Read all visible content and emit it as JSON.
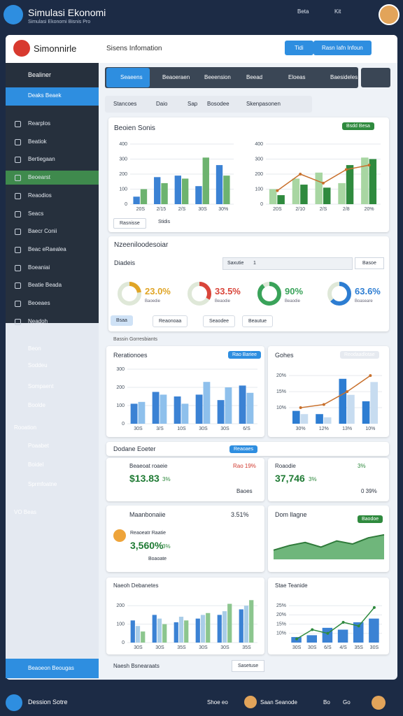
{
  "topbar": {
    "title": "Simulasi Ekonomi",
    "subtitle": "Simulasi Ekonomi Bisnis Pro",
    "links": [
      "Beta",
      "Kit"
    ]
  },
  "header": {
    "brand": "Simonnirle",
    "section": "Sisens Infomation",
    "buttons": [
      "Tidi",
      "Rasn Iafn Infoun"
    ]
  },
  "sidebar": {
    "title": "Bealiner",
    "active": "Deaks Beaek",
    "items": [
      "Rearplos",
      "Beatiok",
      "Bertiegaan",
      "Beoearst",
      "Reaodios",
      "Seacs",
      "Baecr Conii",
      "Beac eRaealea",
      "Boeaniai",
      "Beatie Beada",
      "Beoeaes",
      "Neadoh"
    ],
    "selected": 3,
    "lower": [
      "Beon",
      "Soddeu",
      "Sompaent",
      "Boolde",
      "Rooation",
      "Poaabet",
      "Boidel",
      "Sprmfoatne",
      "VO Beas"
    ],
    "footer": "Beaoeon Beougas"
  },
  "tabs": [
    "Seaeens",
    "Beaoeraen",
    "Beeension",
    "Beead",
    "Eloeas",
    "Baesideles"
  ],
  "filters": [
    "Stancoes",
    "Daio",
    "Sap",
    "Bosodee",
    "Skenpasonen"
  ],
  "panel1": {
    "title": "Beoien Sonis",
    "badge": "Bsdd Besa",
    "legend": [
      "Rasnisse",
      "Stidis"
    ],
    "charts": [
      {
        "type": "bar",
        "categories": [
          "20S",
          "2/15",
          "2/S",
          "30S",
          "30%"
        ],
        "ylim": [
          0,
          400
        ],
        "yticks": [
          0,
          100,
          200,
          300,
          400
        ],
        "series": [
          {
            "color": "#3b82d4",
            "values": [
              50,
              180,
              190,
              120,
              260
            ]
          },
          {
            "color": "#6db36f",
            "values": [
              100,
              140,
              170,
              310,
              190
            ]
          }
        ]
      },
      {
        "type": "bar",
        "categories": [
          "20S",
          "2/10",
          "2/S",
          "2/8",
          "20%"
        ],
        "ylim": [
          0,
          400
        ],
        "yticks": [
          0,
          100,
          200,
          300,
          400
        ],
        "series": [
          {
            "color": "#a8d6a2",
            "values": [
              100,
              170,
              210,
              140,
              310
            ]
          },
          {
            "color": "#2f8a3e",
            "values": [
              60,
              130,
              110,
              260,
              300
            ]
          },
          {
            "kind": "line",
            "color": "#c8702c",
            "values": [
              90,
              200,
              140,
              230,
              260
            ]
          }
        ]
      }
    ]
  },
  "panel2": {
    "title": "Nzeeniloodesoiar",
    "subtitle": "Diadeis",
    "search": "Saxutie",
    "search_value": "1",
    "button": "Basoe",
    "donuts": [
      {
        "value": 23,
        "label": "23.0%",
        "color": "#e0a526",
        "caption": "Baoedie"
      },
      {
        "value": 33.5,
        "label": "33.5%",
        "color": "#d9453a",
        "caption": "Beaodie"
      },
      {
        "value": 90,
        "label": "90%",
        "color": "#3aa35a",
        "caption": "Beaodie"
      },
      {
        "value": 63.6,
        "label": "63.6%",
        "color": "#2d7dd2",
        "caption": "Boaseare"
      }
    ],
    "buttons": [
      "Bsaa",
      "Reaonoaa",
      "Seaodee",
      "Beautue"
    ]
  },
  "section_label": "Bassin Gorresbiants",
  "panel3": [
    {
      "title": "Rerationoes",
      "badge": "Rao Bariee",
      "chart": {
        "type": "bar",
        "categories": [
          "30S",
          "3/S",
          "10S",
          "30S",
          "30S",
          "6/S"
        ],
        "ylim": [
          0,
          300
        ],
        "yticks": [
          0,
          100,
          200,
          300
        ],
        "series": [
          {
            "color": "#3b82d4",
            "values": [
              110,
              175,
              150,
              160,
              130,
              210
            ]
          },
          {
            "color": "#8ec0ec",
            "values": [
              120,
              160,
              110,
              230,
              200,
              170
            ]
          }
        ]
      }
    },
    {
      "title": "Gohes",
      "badge": "Reodaadlotae",
      "chart": {
        "type": "bar",
        "categories": [
          "30%",
          "12%",
          "13%",
          "10%"
        ],
        "ylim": [
          5,
          22
        ],
        "yticks": [
          {
            "value": 10,
            "label": "10%"
          },
          {
            "value": 15,
            "label": "15%"
          },
          {
            "value": 20,
            "label": "20%"
          }
        ],
        "series": [
          {
            "color": "#2d7dd2",
            "values": [
              9,
              8,
              19,
              12
            ]
          },
          {
            "color": "#c7dcf0",
            "values": [
              8,
              7,
              14,
              18
            ]
          },
          {
            "kind": "line",
            "color": "#c8702c",
            "values": [
              10,
              11,
              15,
              20
            ]
          }
        ]
      }
    }
  ],
  "kpi": {
    "title": "Dodane Eoeter",
    "badge": "Reaoaes",
    "cards": [
      {
        "title": "Beaeoat roaeie",
        "value": "$13.83",
        "change": "3%",
        "tag": "Rao 19%",
        "note": "Baoes"
      },
      {
        "title": "Roaodie",
        "value": "37,746",
        "change": "3%",
        "tag": "3%",
        "note": "0 39%"
      }
    ],
    "lower": {
      "title": "Maanbonaiie",
      "rate": "3.51%",
      "sub": "Reaoeatr Raatie",
      "value": "3,560%",
      "change": "3%",
      "note": "Boaoate"
    },
    "area": {
      "type": "area",
      "title": "Dom llagne",
      "badge": "Baodoe",
      "color": "#3f9e4f",
      "ylim": [
        0,
        100
      ],
      "values": [
        30,
        45,
        55,
        40,
        60,
        50,
        70,
        80
      ]
    }
  },
  "bottom": [
    {
      "title": "Naeoh Debanetes",
      "chart": {
        "type": "bar",
        "categories": [
          "30S",
          "30S",
          "35S",
          "30S",
          "30S",
          "35S"
        ],
        "ylim": [
          0,
          250
        ],
        "yticks": [
          0,
          100,
          200
        ],
        "series": [
          {
            "color": "#3b82d4",
            "values": [
              120,
              150,
              110,
              130,
              150,
              180
            ]
          },
          {
            "color": "#a9cde8",
            "values": [
              90,
              130,
              140,
              150,
              170,
              200
            ]
          },
          {
            "color": "#8cc68e",
            "values": [
              60,
              100,
              120,
              160,
              210,
              230
            ]
          }
        ]
      }
    },
    {
      "title": "Stae Teanide",
      "chart": {
        "type": "bar",
        "categories": [
          "30S",
          "30S",
          "6/S",
          "4/S",
          "35S",
          "30S"
        ],
        "ylim": [
          5,
          30
        ],
        "yticks": [
          {
            "value": 10,
            "label": "10%"
          },
          {
            "value": 15,
            "label": "15%"
          },
          {
            "value": 20,
            "label": "20%"
          },
          {
            "value": 25,
            "label": "25%"
          }
        ],
        "series": [
          {
            "color": "#3b82d4",
            "values": [
              8,
              9,
              13,
              12,
              16,
              18
            ]
          },
          {
            "kind": "line",
            "color": "#2f8a3e",
            "values": [
              7,
              12,
              10,
              16,
              14,
              24
            ]
          }
        ]
      }
    }
  ],
  "strip": {
    "title": "Naesh Bsnearaats",
    "button": "Sasetuse"
  },
  "statusbar": {
    "title": "Dession Sotre",
    "items": [
      "Shoe eo",
      "Saan Seanode",
      "Bo",
      "Go"
    ]
  }
}
